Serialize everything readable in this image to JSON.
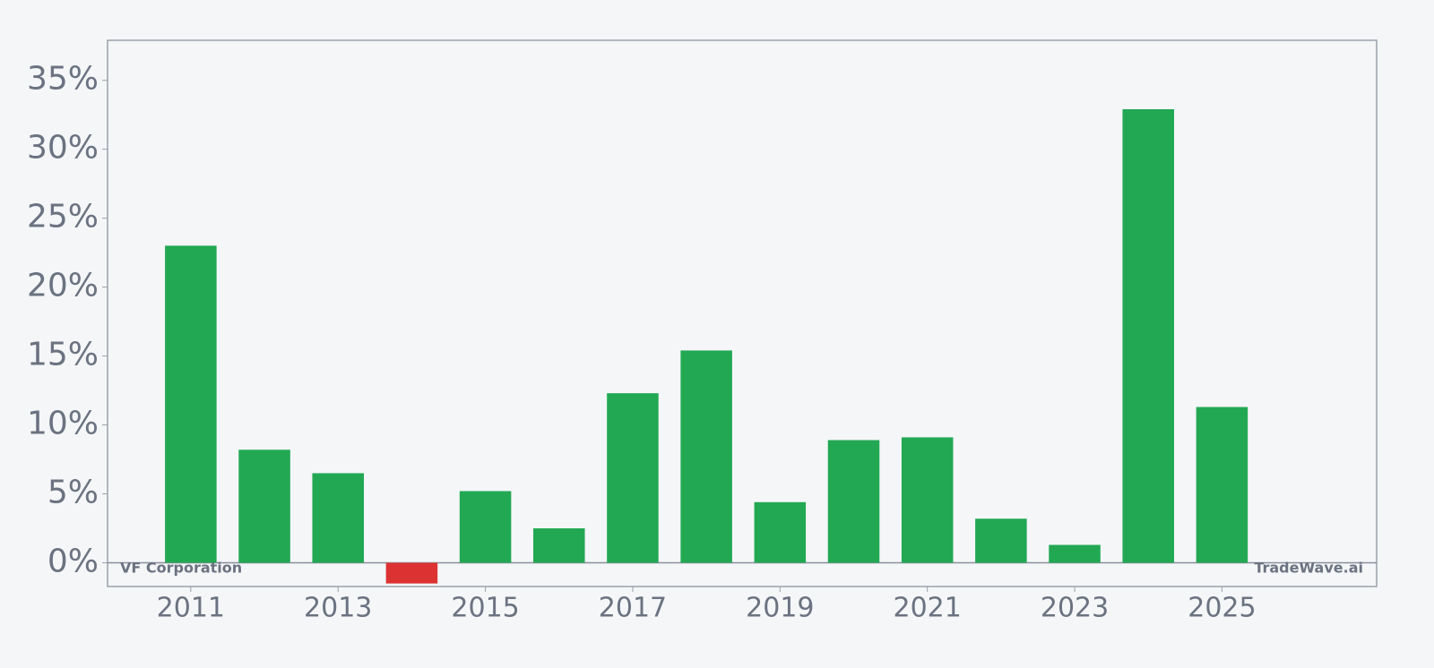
{
  "chart_data": {
    "type": "bar",
    "x": [
      2011,
      2012,
      2013,
      2014,
      2015,
      2016,
      2017,
      2018,
      2019,
      2020,
      2021,
      2022,
      2023,
      2024,
      2025
    ],
    "values": [
      23.0,
      8.2,
      6.5,
      -1.5,
      5.2,
      2.5,
      12.3,
      15.4,
      4.4,
      8.9,
      9.1,
      3.2,
      1.3,
      32.9,
      11.3
    ],
    "positive_color": "#22a853",
    "negative_color": "#dc3232",
    "xlim": [
      2009.87,
      2027.1
    ],
    "xticks": [
      2011,
      2013,
      2015,
      2017,
      2019,
      2021,
      2023,
      2025
    ],
    "ylim": [
      -1.72,
      37.9
    ],
    "yticks": [
      {
        "value": 0,
        "label": "0%"
      },
      {
        "value": 5,
        "label": "5%"
      },
      {
        "value": 10,
        "label": "10%"
      },
      {
        "value": 15,
        "label": "15%"
      },
      {
        "value": 20,
        "label": "20%"
      },
      {
        "value": 25,
        "label": "25%"
      },
      {
        "value": 30,
        "label": "30%"
      },
      {
        "value": 35,
        "label": "35%"
      }
    ],
    "annotations": [
      "VF Corporation",
      "TradeWave.ai"
    ]
  }
}
